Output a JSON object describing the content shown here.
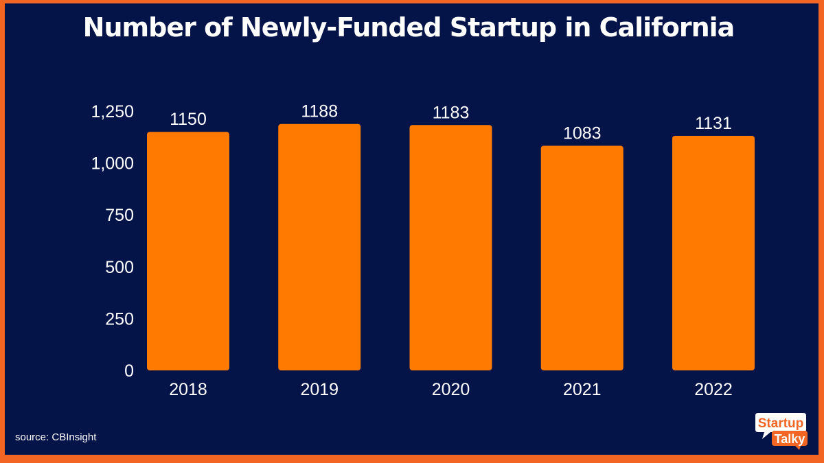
{
  "chart_data": {
    "type": "bar",
    "title": "Number of Newly-Funded Startup in California",
    "categories": [
      "2018",
      "2019",
      "2020",
      "2021",
      "2022"
    ],
    "values": [
      1150,
      1188,
      1183,
      1083,
      1131
    ],
    "data_labels": [
      "1150",
      "1188",
      "1183",
      "1083",
      "1131"
    ],
    "xlabel": "",
    "ylabel": "",
    "ylim": [
      0,
      1250
    ],
    "yticks": [
      "0",
      "250",
      "500",
      "750",
      "1,000",
      "1,250"
    ],
    "ytick_values": [
      0,
      250,
      500,
      750,
      1000,
      1250
    ],
    "grid": false,
    "bar_color": "#ff7a00",
    "background": "#041449",
    "border_color": "#f26522"
  },
  "source": "source: CBInsight",
  "logo": {
    "line1": "Startup",
    "line2": "Talky"
  }
}
